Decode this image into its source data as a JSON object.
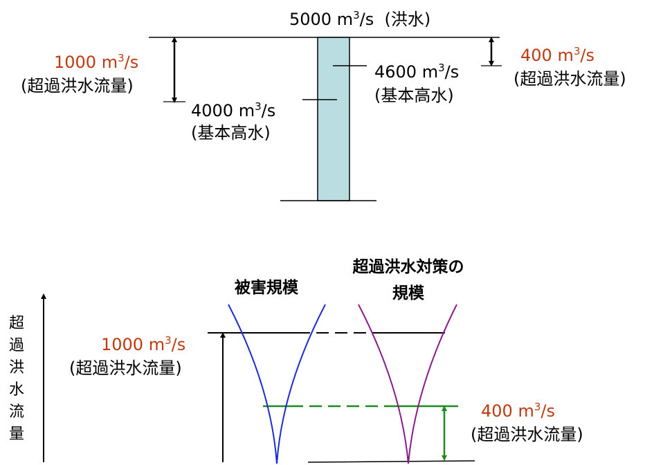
{
  "top": {
    "flood_total": {
      "value": "5000 m",
      "sup": "3",
      "unit": "/s",
      "paren": "(洪水)"
    },
    "left_excess": {
      "value": "1000 m",
      "sup": "3",
      "unit": "/s",
      "label": "(超過洪水流量)"
    },
    "left_basic": {
      "value": "4000 m",
      "sup": "3",
      "unit": "/s",
      "label": "(基本高水)"
    },
    "right_basic": {
      "value": "4600 m",
      "sup": "3",
      "unit": "/s",
      "label": "(基本高水)"
    },
    "right_excess": {
      "value": "400 m",
      "sup": "3",
      "unit": "/s",
      "label": "(超過洪水流量)"
    }
  },
  "bottom": {
    "damage_scale_title": "被害規模",
    "countermeasure_title_line1": "超過洪水対策の",
    "countermeasure_title_line2": "規模",
    "axis_label_chars": [
      "超",
      "過",
      "洪",
      "水",
      "流",
      "量"
    ],
    "excess_1000": {
      "value": "1000 m",
      "sup": "3",
      "unit": "/s",
      "label": "(超過洪水流量)"
    },
    "excess_400": {
      "value": "400 m",
      "sup": "3",
      "unit": "/s",
      "label": "(超過洪水流量)"
    }
  },
  "colors": {
    "bar_fill": "#b9dde1",
    "damage_curve": "#1a2bd6",
    "countermeasure_curve": "#8a1a8c",
    "green_level": "#1a8a1a",
    "red_label": "#c03a10"
  }
}
